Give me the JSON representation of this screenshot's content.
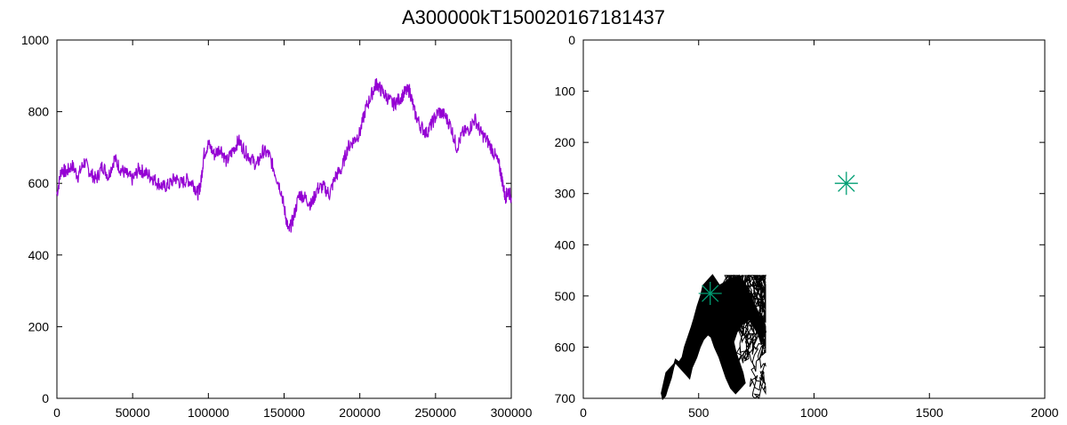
{
  "title": "A300000kT150020167181437",
  "chart_data": [
    {
      "type": "line",
      "title": "",
      "xlabel": "",
      "ylabel": "",
      "xlim": [
        0,
        300000
      ],
      "ylim": [
        0,
        1000
      ],
      "x_ticks": [
        0,
        50000,
        100000,
        150000,
        200000,
        250000,
        300000
      ],
      "y_ticks": [
        0,
        200,
        400,
        600,
        800,
        1000
      ],
      "grid": false,
      "series": [
        {
          "color": "#9400d3",
          "x": [
            0,
            3000,
            6000,
            10000,
            14000,
            18000,
            22000,
            26000,
            30000,
            34000,
            38000,
            42000,
            46000,
            50000,
            54000,
            58000,
            62000,
            66000,
            70000,
            74000,
            78000,
            82000,
            86000,
            90000,
            93000,
            95000,
            97000,
            100000,
            104000,
            108000,
            112000,
            116000,
            120000,
            124000,
            128000,
            132000,
            136000,
            140000,
            144000,
            148000,
            151000,
            153000,
            156000,
            160000,
            164000,
            168000,
            172000,
            176000,
            180000,
            184000,
            188000,
            192000,
            196000,
            200000,
            204000,
            208000,
            211000,
            214000,
            218000,
            222000,
            226000,
            230000,
            233000,
            236000,
            240000,
            244000,
            248000,
            252000,
            256000,
            260000,
            264000,
            268000,
            272000,
            276000,
            280000,
            284000,
            288000,
            292000,
            294000,
            296000,
            298000,
            300000
          ],
          "values": [
            570,
            640,
            630,
            650,
            620,
            660,
            630,
            610,
            650,
            620,
            670,
            640,
            625,
            610,
            640,
            630,
            620,
            605,
            590,
            595,
            615,
            600,
            610,
            600,
            570,
            600,
            680,
            710,
            680,
            700,
            660,
            690,
            720,
            690,
            670,
            650,
            690,
            680,
            630,
            580,
            510,
            465,
            500,
            570,
            560,
            540,
            585,
            590,
            570,
            620,
            640,
            700,
            720,
            740,
            810,
            850,
            880,
            860,
            840,
            820,
            835,
            855,
            860,
            800,
            760,
            740,
            770,
            800,
            790,
            760,
            700,
            740,
            750,
            780,
            740,
            720,
            690,
            650,
            610,
            560,
            580,
            560
          ]
        }
      ]
    },
    {
      "type": "scatter",
      "title": "",
      "xlabel": "",
      "ylabel": "",
      "xlim": [
        0,
        2000
      ],
      "ylim": [
        700,
        0
      ],
      "y_inverted": true,
      "x_ticks": [
        0,
        500,
        1000,
        1500,
        2000
      ],
      "y_ticks": [
        0,
        100,
        200,
        300,
        400,
        500,
        600,
        700
      ],
      "grid": false,
      "series": [
        {
          "color": "#000000",
          "marker": "dense-trajectory",
          "x": [
            560,
            540,
            520,
            510,
            495,
            480,
            470,
            455,
            440,
            430,
            415,
            400,
            390,
            380,
            365,
            355,
            345,
            340,
            350,
            360,
            380,
            400,
            420,
            440,
            460,
            470,
            490,
            505,
            520,
            540,
            555,
            570,
            590,
            605,
            620,
            640,
            660,
            680,
            700,
            690,
            675,
            660,
            650,
            665,
            680,
            700,
            720,
            740,
            760,
            770,
            790,
            780,
            765,
            750,
            735,
            720,
            705,
            690,
            670,
            650,
            630,
            610,
            590,
            575,
            560
          ],
          "values": [
            460,
            470,
            480,
            500,
            520,
            545,
            560,
            580,
            600,
            620,
            630,
            625,
            640,
            660,
            680,
            695,
            700,
            690,
            670,
            650,
            640,
            630,
            640,
            650,
            660,
            640,
            620,
            600,
            585,
            575,
            580,
            600,
            620,
            640,
            660,
            680,
            690,
            680,
            670,
            650,
            630,
            610,
            590,
            570,
            560,
            550,
            545,
            560,
            575,
            590,
            570,
            555,
            540,
            525,
            510,
            495,
            480,
            470,
            462,
            465,
            470,
            475,
            480,
            470,
            460
          ]
        },
        {
          "color": "#009e73",
          "marker": "star",
          "x": [
            550,
            1140
          ],
          "values": [
            495,
            280
          ]
        }
      ]
    }
  ]
}
